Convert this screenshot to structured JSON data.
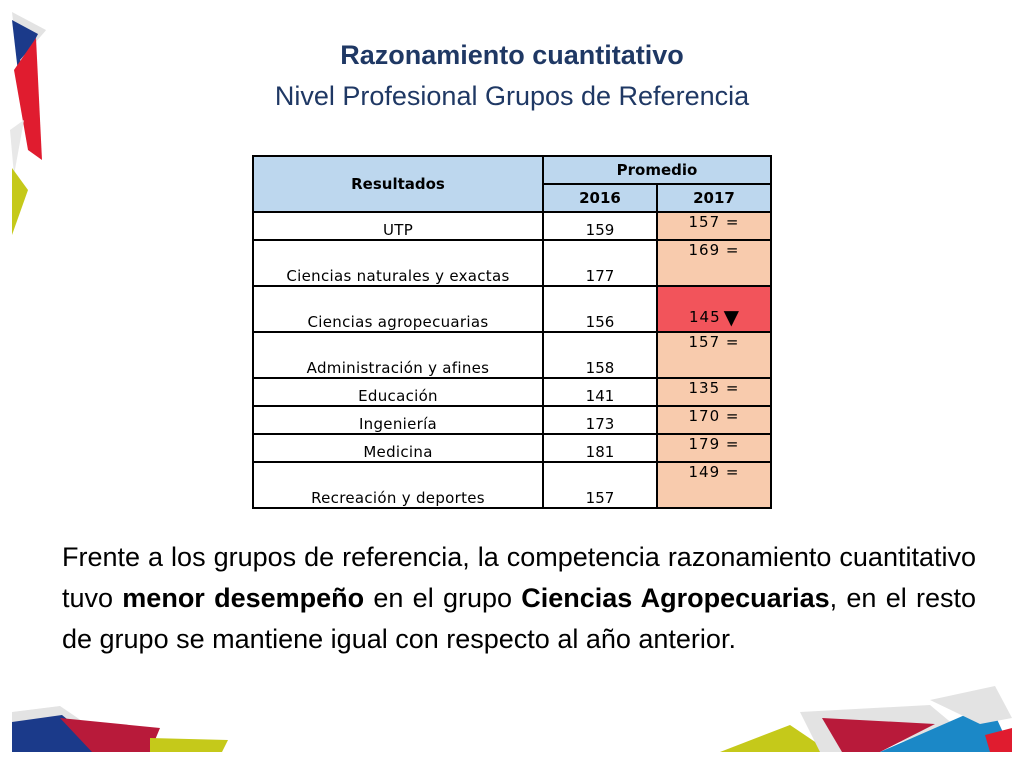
{
  "title": "Razonamiento cuantitativo",
  "subtitle": "Nivel Profesional Grupos de Referencia",
  "table": {
    "header_resultados": "Resultados",
    "header_promedio": "Promedio",
    "year1": "2016",
    "year2": "2017",
    "rows": [
      {
        "name": "UTP",
        "v2016": "159",
        "v2017": "157 =",
        "down": false
      },
      {
        "name": "Ciencias naturales y exactas",
        "v2016": "177",
        "v2017": "169 =",
        "down": false
      },
      {
        "name": "Ciencias agropecuarias",
        "v2016": "156",
        "v2017": "145",
        "down": true,
        "marker": "▼"
      },
      {
        "name": "Administración y afines",
        "v2016": "158",
        "v2017": "157 =",
        "down": false
      },
      {
        "name": "Educación",
        "v2016": "141",
        "v2017": "135 =",
        "down": false
      },
      {
        "name": "Ingeniería",
        "v2016": "173",
        "v2017": "170 =",
        "down": false
      },
      {
        "name": "Medicina",
        "v2016": "181",
        "v2017": "179 =",
        "down": false
      },
      {
        "name": "Recreación y deportes",
        "v2016": "157",
        "v2017": "149 =",
        "down": false
      }
    ]
  },
  "paragraph": {
    "p1": "Frente a los grupos de referencia, la competencia razonamiento cuantitativo tuvo ",
    "b1": "menor desempeño",
    "p2": " en el grupo ",
    "b2": "Ciencias Agropecuarias",
    "p3": ", en el resto de grupo se mantiene igual con respecto al año anterior."
  },
  "colors": {
    "header_bg": "#bdd7ee",
    "cell_2017": "#f8cbad",
    "cell_down": "#f2545b",
    "title": "#1f3864"
  }
}
